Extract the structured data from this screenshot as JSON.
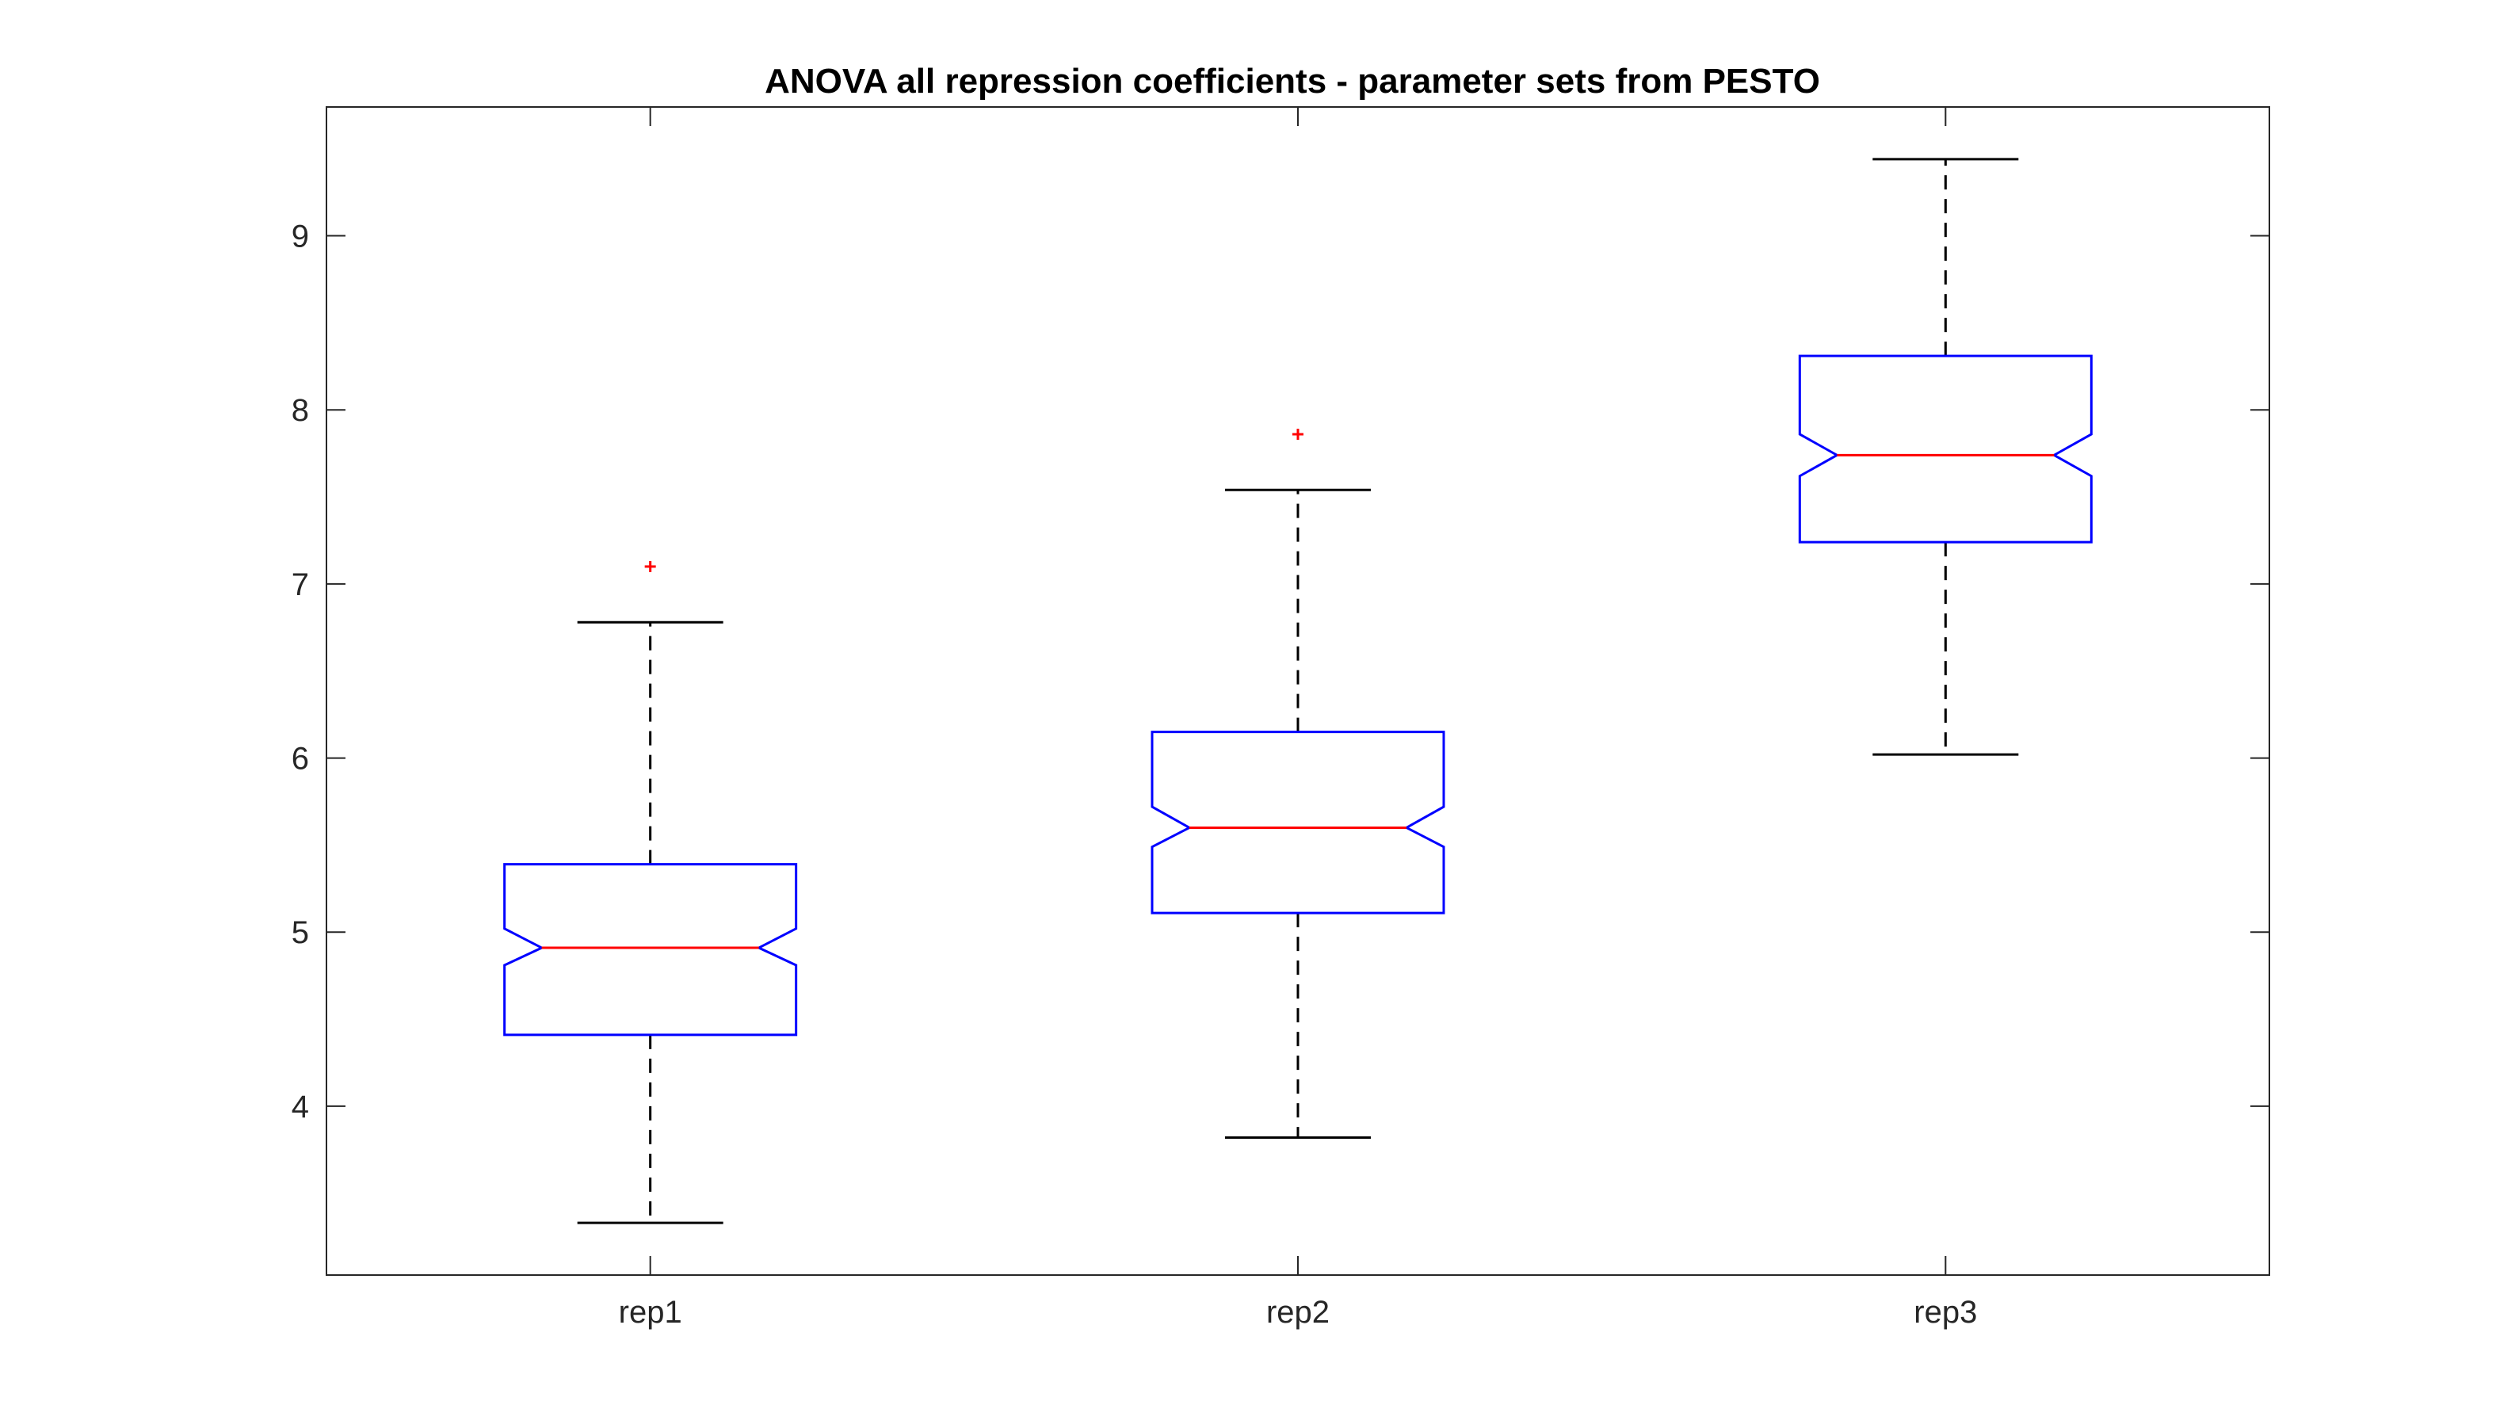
{
  "chart_data": {
    "type": "boxplot",
    "title": "ANOVA all repression coefficients - parameter sets from PESTO",
    "xlabel": "",
    "ylabel": "",
    "categories": [
      "rep1",
      "rep2",
      "rep3"
    ],
    "ylim": [
      3.03,
      9.74
    ],
    "yticks": [
      4,
      5,
      6,
      7,
      8,
      9
    ],
    "ytick_labels": [
      "4",
      "5",
      "6",
      "7",
      "8",
      "9"
    ],
    "notched": true,
    "grid": false,
    "legend": false,
    "boxes": [
      {
        "name": "rep1",
        "whisker_low": 3.33,
        "q1": 4.41,
        "median": 4.91,
        "q3": 5.39,
        "whisker_high": 6.78,
        "notch_low": 4.81,
        "notch_high": 5.02,
        "outliers": [
          7.1
        ]
      },
      {
        "name": "rep2",
        "whisker_low": 3.82,
        "q1": 5.11,
        "median": 5.6,
        "q3": 6.15,
        "whisker_high": 7.54,
        "notch_low": 5.49,
        "notch_high": 5.72,
        "outliers": [
          7.86
        ]
      },
      {
        "name": "rep3",
        "whisker_low": 6.02,
        "q1": 7.24,
        "median": 7.74,
        "q3": 8.31,
        "whisker_high": 9.44,
        "notch_low": 7.62,
        "notch_high": 7.86,
        "outliers": []
      }
    ],
    "colors": {
      "box": "#0000ff",
      "median": "#ff0000",
      "whisker": "#000000",
      "outlier": "#ff0000",
      "axis": "#262626"
    }
  }
}
